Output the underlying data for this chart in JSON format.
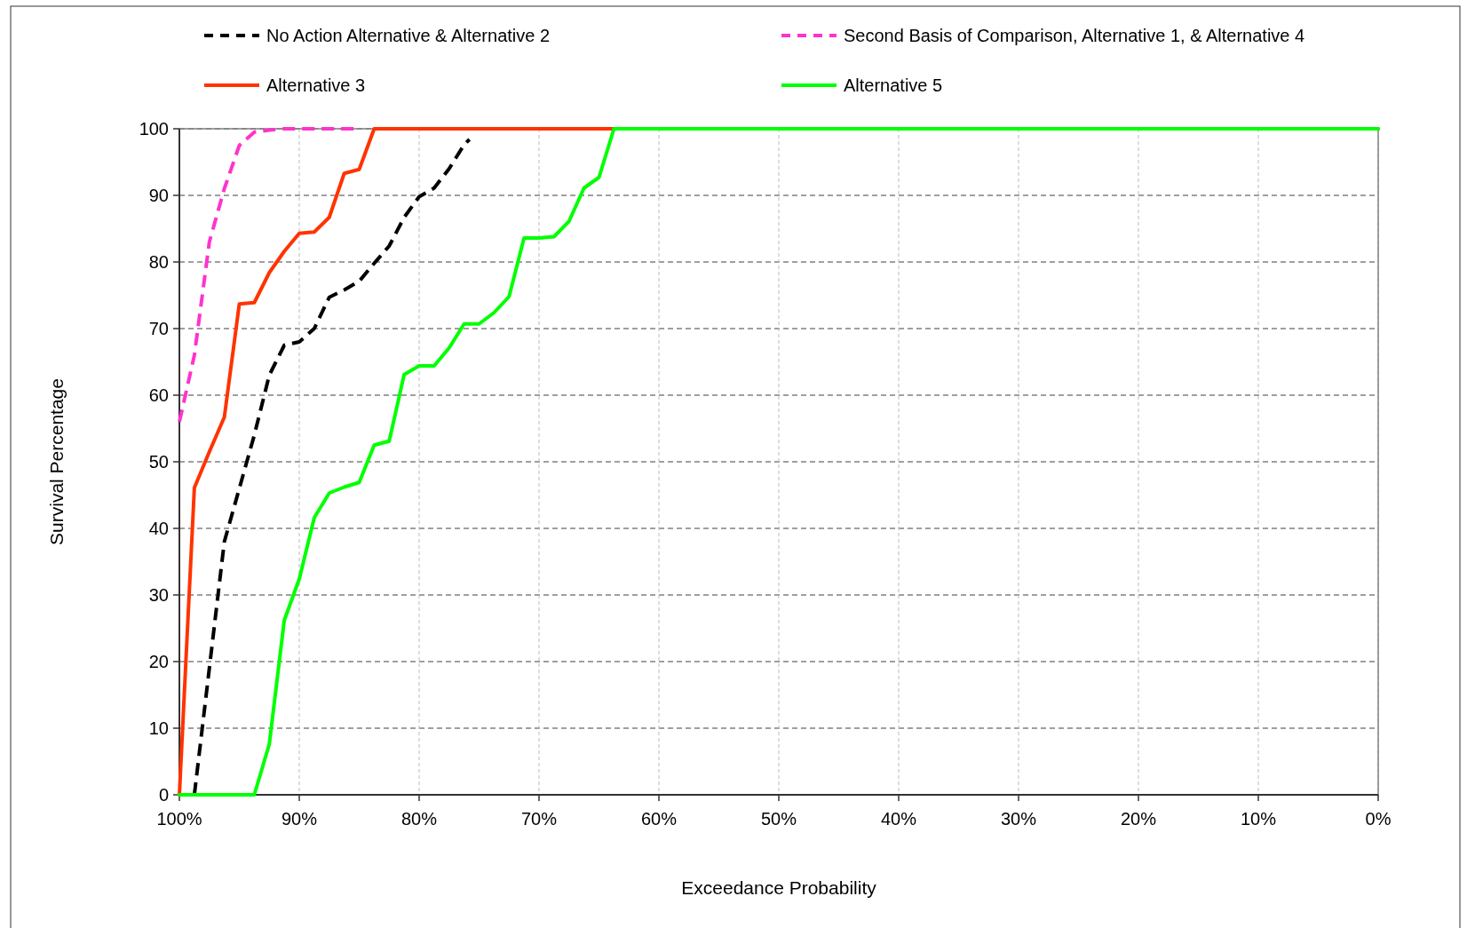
{
  "chart_data": {
    "type": "line",
    "xlabel": "Exceedance Probability",
    "ylabel": "Survival Percentage",
    "xlim": [
      100,
      0
    ],
    "ylim": [
      0,
      100
    ],
    "xticks": [
      {
        "value": 100,
        "label": "100%"
      },
      {
        "value": 90,
        "label": "90%"
      },
      {
        "value": 80,
        "label": "80%"
      },
      {
        "value": 70,
        "label": "70%"
      },
      {
        "value": 60,
        "label": "60%"
      },
      {
        "value": 50,
        "label": "50%"
      },
      {
        "value": 40,
        "label": "40%"
      },
      {
        "value": 30,
        "label": "30%"
      },
      {
        "value": 20,
        "label": "20%"
      },
      {
        "value": 10,
        "label": "10%"
      },
      {
        "value": 0,
        "label": "0%"
      }
    ],
    "yticks": [
      0,
      10,
      20,
      30,
      40,
      50,
      60,
      70,
      80,
      90,
      100
    ],
    "grid": true,
    "legend": "top",
    "marker": "none",
    "series": [
      {
        "name": "No Action Alternative & Alternative 2",
        "color": "#000000",
        "line_style": "dashed",
        "x": [
          98.75,
          97.5,
          96.25,
          95,
          93.75,
          92.5,
          91.25,
          90,
          88.75,
          87.5,
          86.25,
          85,
          83.75,
          82.5,
          81.25,
          80,
          78.75,
          77.5,
          76.25,
          75.8
        ],
        "values": [
          0,
          19,
          38,
          46,
          54,
          63,
          67.5,
          68,
          70,
          74.7,
          75.8,
          77.1,
          79.8,
          82.4,
          86.7,
          89.8,
          91.1,
          94,
          97.6,
          98.4
        ]
      },
      {
        "name": "Second Basis of Comparison, Alternative 1, & Alternative 4",
        "color": "#ff33cc",
        "line_style": "dashed",
        "x": [
          100,
          98.75,
          97.5,
          96.25,
          95,
          93.75,
          92.5,
          91.25,
          85
        ],
        "values": [
          56,
          66,
          83,
          91,
          97.5,
          99.5,
          99.8,
          100,
          100
        ]
      },
      {
        "name": "Alternative 3",
        "color": "#ff3300",
        "line_style": "solid",
        "x": [
          100,
          98.75,
          97.5,
          96.25,
          95,
          93.75,
          92.5,
          91.25,
          90,
          88.75,
          87.5,
          86.25,
          85,
          83.75,
          0
        ],
        "values": [
          0,
          46.1,
          51.5,
          56.7,
          73.7,
          73.9,
          78.4,
          81.6,
          84.3,
          84.5,
          86.7,
          93.3,
          93.9,
          100,
          100
        ]
      },
      {
        "name": "Alternative 5",
        "color": "#00ff00",
        "line_style": "solid",
        "x": [
          100,
          93.75,
          92.5,
          91.25,
          90,
          88.75,
          87.5,
          86.25,
          85,
          83.75,
          82.5,
          81.25,
          80,
          78.75,
          77.5,
          76.25,
          75,
          73.75,
          72.5,
          71.25,
          70,
          68.75,
          67.5,
          66.25,
          65,
          63.75,
          0
        ],
        "values": [
          0,
          0,
          7.6,
          26.2,
          32.4,
          41.6,
          45.3,
          46.2,
          46.9,
          52.5,
          53.1,
          63.1,
          64.4,
          64.4,
          67.1,
          70.7,
          70.7,
          72.4,
          74.8,
          83.6,
          83.6,
          83.8,
          86.1,
          91.1,
          92.7,
          100,
          100
        ]
      }
    ]
  }
}
